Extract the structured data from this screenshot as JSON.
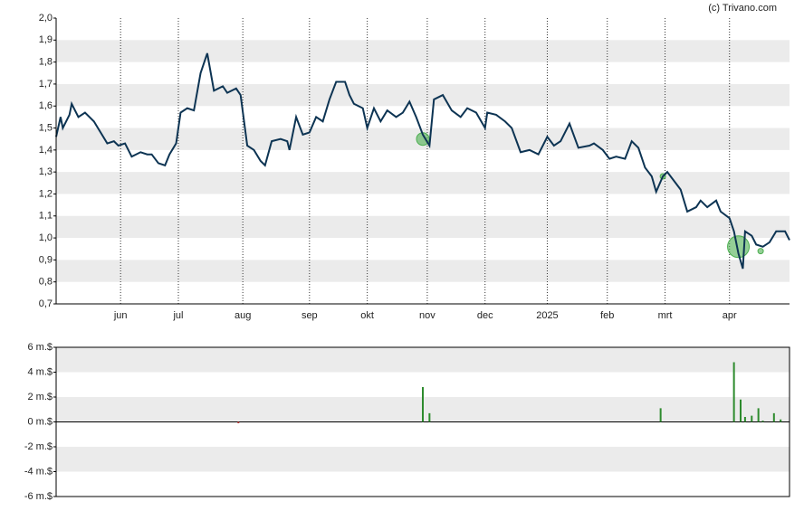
{
  "source": "(c) Trivano.com",
  "chart_data": [
    {
      "type": "line",
      "color": "#0d3453",
      "x": [
        0,
        2,
        3,
        6,
        7,
        10,
        13,
        17,
        20,
        23,
        26,
        28,
        31,
        34,
        38,
        41,
        43,
        46,
        49,
        51,
        54,
        56,
        59,
        62,
        65,
        68,
        71,
        75,
        77,
        81,
        83,
        86,
        89,
        92,
        94,
        97,
        101,
        104,
        105,
        108,
        111,
        114,
        117,
        120,
        123,
        126,
        130,
        132,
        134,
        138,
        140,
        143,
        146,
        149,
        153,
        156,
        159,
        162,
        165,
        168,
        170,
        174,
        178,
        182,
        185,
        189,
        193,
        194,
        198,
        202,
        205,
        209,
        213,
        217,
        221,
        224,
        227,
        231,
        235,
        240,
        242,
        246,
        249,
        252,
        256,
        259,
        262,
        265,
        268,
        270,
        273,
        275,
        278,
        281,
        284,
        288,
        290,
        293,
        297,
        299,
        303,
        305,
        307,
        309,
        310,
        313,
        315,
        318,
        321,
        324,
        328,
        330
      ],
      "values": [
        1.46,
        1.55,
        1.5,
        1.56,
        1.61,
        1.55,
        1.57,
        1.53,
        1.48,
        1.43,
        1.44,
        1.42,
        1.43,
        1.37,
        1.39,
        1.38,
        1.38,
        1.34,
        1.33,
        1.38,
        1.43,
        1.57,
        1.59,
        1.58,
        1.75,
        1.84,
        1.67,
        1.69,
        1.66,
        1.68,
        1.65,
        1.42,
        1.4,
        1.35,
        1.33,
        1.44,
        1.45,
        1.44,
        1.4,
        1.55,
        1.47,
        1.48,
        1.55,
        1.53,
        1.63,
        1.71,
        1.71,
        1.65,
        1.61,
        1.59,
        1.5,
        1.59,
        1.53,
        1.58,
        1.55,
        1.57,
        1.62,
        1.55,
        1.47,
        1.42,
        1.63,
        1.65,
        1.58,
        1.55,
        1.59,
        1.57,
        1.5,
        1.57,
        1.56,
        1.53,
        1.5,
        1.39,
        1.4,
        1.38,
        1.46,
        1.42,
        1.44,
        1.52,
        1.41,
        1.42,
        1.43,
        1.4,
        1.36,
        1.37,
        1.36,
        1.44,
        1.41,
        1.32,
        1.28,
        1.21,
        1.28,
        1.3,
        1.26,
        1.22,
        1.12,
        1.14,
        1.17,
        1.14,
        1.17,
        1.12,
        1.09,
        1.03,
        0.93,
        0.86,
        1.03,
        1.01,
        0.97,
        0.96,
        0.98,
        1.03,
        1.03,
        0.99
      ],
      "events": {
        "color": "#4caf50",
        "x": [
          165,
          273,
          307,
          317
        ],
        "y": [
          1.45,
          1.28,
          0.96,
          0.94
        ],
        "size": [
          7,
          3,
          12,
          3
        ]
      },
      "xlim": [
        0,
        330
      ],
      "xticks": [
        {
          "value": 29,
          "label": "jun"
        },
        {
          "value": 55,
          "label": "jul"
        },
        {
          "value": 84,
          "label": "aug"
        },
        {
          "value": 114,
          "label": "sep"
        },
        {
          "value": 140,
          "label": "okt"
        },
        {
          "value": 167,
          "label": "nov"
        },
        {
          "value": 193,
          "label": "dec"
        },
        {
          "value": 221,
          "label": "2025"
        },
        {
          "value": 248,
          "label": "feb"
        },
        {
          "value": 274,
          "label": "mrt"
        },
        {
          "value": 303,
          "label": "apr"
        }
      ],
      "ylim": [
        0.7,
        2.0
      ],
      "yticks": [
        {
          "value": 0.7,
          "label": "0,7"
        },
        {
          "value": 0.8,
          "label": "0,8"
        },
        {
          "value": 0.9,
          "label": "0,9"
        },
        {
          "value": 1.0,
          "label": "1,0"
        },
        {
          "value": 1.1,
          "label": "1,1"
        },
        {
          "value": 1.2,
          "label": "1,2"
        },
        {
          "value": 1.3,
          "label": "1,3"
        },
        {
          "value": 1.4,
          "label": "1,4"
        },
        {
          "value": 1.5,
          "label": "1,5"
        },
        {
          "value": 1.6,
          "label": "1,6"
        },
        {
          "value": 1.7,
          "label": "1,7"
        },
        {
          "value": 1.8,
          "label": "1,8"
        },
        {
          "value": 1.9,
          "label": "1,9"
        },
        {
          "value": 2.0,
          "label": "2,0"
        }
      ],
      "grid": true
    },
    {
      "type": "bar",
      "x": [
        82,
        165,
        168,
        272,
        305,
        308,
        310,
        313,
        316,
        318,
        323,
        326
      ],
      "values": [
        -0.1,
        2.8,
        0.7,
        1.1,
        4.8,
        1.8,
        0.4,
        0.5,
        1.1,
        0.1,
        0.7,
        0.2
      ],
      "colors": [
        "#c62828",
        "#2e8b2e",
        "#2e8b2e",
        "#2e8b2e",
        "#2e8b2e",
        "#2e8b2e",
        "#2e8b2e",
        "#2e8b2e",
        "#2e8b2e",
        "#2e8b2e",
        "#2e8b2e",
        "#2e8b2e"
      ],
      "xlim": [
        0,
        330
      ],
      "ylim": [
        -6,
        6
      ],
      "yticks": [
        {
          "value": -6,
          "label": "-6 m.$"
        },
        {
          "value": -4,
          "label": "-4 m.$"
        },
        {
          "value": -2,
          "label": "-2 m.$"
        },
        {
          "value": 0,
          "label": "0 m.$"
        },
        {
          "value": 2,
          "label": "2 m.$"
        },
        {
          "value": 4,
          "label": "4 m.$"
        },
        {
          "value": 6,
          "label": "6 m.$"
        }
      ],
      "grid": true
    }
  ]
}
